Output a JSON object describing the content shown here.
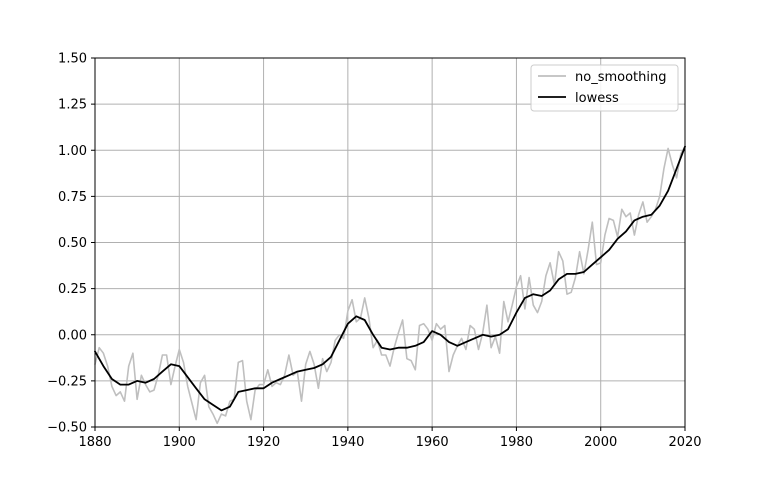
{
  "chart_data": {
    "type": "line",
    "title": "",
    "xlabel": "",
    "ylabel": "",
    "xlim": [
      1880,
      2020
    ],
    "ylim": [
      -0.5,
      1.5
    ],
    "x_ticks": [
      "1880",
      "1900",
      "1920",
      "1940",
      "1960",
      "1980",
      "2000",
      "2020"
    ],
    "y_ticks": [
      "−0.50",
      "−0.25",
      "0.00",
      "0.25",
      "0.50",
      "0.75",
      "1.00",
      "1.25",
      "1.50"
    ],
    "grid": true,
    "legend_position": "top-right",
    "series": [
      {
        "name": "no_smoothing",
        "color": "#bfbfbf",
        "x": [
          1880,
          1881,
          1882,
          1883,
          1884,
          1885,
          1886,
          1887,
          1888,
          1889,
          1890,
          1891,
          1892,
          1893,
          1894,
          1895,
          1896,
          1897,
          1898,
          1899,
          1900,
          1901,
          1902,
          1903,
          1904,
          1905,
          1906,
          1907,
          1908,
          1909,
          1910,
          1911,
          1912,
          1913,
          1914,
          1915,
          1916,
          1917,
          1918,
          1919,
          1920,
          1921,
          1922,
          1923,
          1924,
          1925,
          1926,
          1927,
          1928,
          1929,
          1930,
          1931,
          1932,
          1933,
          1934,
          1935,
          1936,
          1937,
          1938,
          1939,
          1940,
          1941,
          1942,
          1943,
          1944,
          1945,
          1946,
          1947,
          1948,
          1949,
          1950,
          1951,
          1952,
          1953,
          1954,
          1955,
          1956,
          1957,
          1958,
          1959,
          1960,
          1961,
          1962,
          1963,
          1964,
          1965,
          1966,
          1967,
          1968,
          1969,
          1970,
          1971,
          1972,
          1973,
          1974,
          1975,
          1976,
          1977,
          1978,
          1979,
          1980,
          1981,
          1982,
          1983,
          1984,
          1985,
          1986,
          1987,
          1988,
          1989,
          1990,
          1991,
          1992,
          1993,
          1994,
          1995,
          1996,
          1997,
          1998,
          1999,
          2000,
          2001,
          2002,
          2003,
          2004,
          2005,
          2006,
          2007,
          2008,
          2009,
          2010,
          2011,
          2012,
          2013,
          2014,
          2015,
          2016,
          2017,
          2018,
          2019,
          2020
        ],
        "values": [
          -0.16,
          -0.07,
          -0.1,
          -0.17,
          -0.28,
          -0.33,
          -0.31,
          -0.36,
          -0.17,
          -0.1,
          -0.35,
          -0.22,
          -0.27,
          -0.31,
          -0.3,
          -0.22,
          -0.11,
          -0.11,
          -0.27,
          -0.17,
          -0.08,
          -0.15,
          -0.28,
          -0.37,
          -0.46,
          -0.26,
          -0.22,
          -0.39,
          -0.43,
          -0.48,
          -0.43,
          -0.44,
          -0.36,
          -0.35,
          -0.15,
          -0.14,
          -0.36,
          -0.46,
          -0.3,
          -0.27,
          -0.27,
          -0.19,
          -0.28,
          -0.26,
          -0.27,
          -0.22,
          -0.11,
          -0.22,
          -0.2,
          -0.36,
          -0.16,
          -0.09,
          -0.16,
          -0.29,
          -0.13,
          -0.2,
          -0.15,
          -0.03,
          0.0,
          -0.02,
          0.13,
          0.19,
          0.07,
          0.09,
          0.2,
          0.09,
          -0.07,
          -0.03,
          -0.11,
          -0.11,
          -0.17,
          -0.07,
          0.01,
          0.08,
          -0.13,
          -0.14,
          -0.19,
          0.05,
          0.06,
          0.03,
          -0.03,
          0.06,
          0.03,
          0.05,
          -0.2,
          -0.11,
          -0.06,
          -0.02,
          -0.08,
          0.05,
          0.03,
          -0.08,
          0.01,
          0.16,
          -0.07,
          -0.01,
          -0.1,
          0.18,
          0.07,
          0.16,
          0.26,
          0.32,
          0.14,
          0.31,
          0.16,
          0.12,
          0.18,
          0.32,
          0.39,
          0.27,
          0.45,
          0.4,
          0.22,
          0.23,
          0.31,
          0.45,
          0.33,
          0.46,
          0.61,
          0.38,
          0.39,
          0.54,
          0.63,
          0.62,
          0.53,
          0.68,
          0.64,
          0.66,
          0.54,
          0.65,
          0.72,
          0.61,
          0.64,
          0.68,
          0.75,
          0.9,
          1.01,
          0.92,
          0.85,
          0.98,
          1.02
        ]
      },
      {
        "name": "lowess",
        "color": "#000000",
        "x": [
          1880,
          1882,
          1884,
          1886,
          1888,
          1890,
          1892,
          1894,
          1896,
          1898,
          1900,
          1902,
          1904,
          1906,
          1908,
          1910,
          1912,
          1914,
          1916,
          1918,
          1920,
          1922,
          1924,
          1926,
          1928,
          1930,
          1932,
          1934,
          1936,
          1938,
          1940,
          1942,
          1944,
          1946,
          1948,
          1950,
          1952,
          1954,
          1956,
          1958,
          1960,
          1962,
          1964,
          1966,
          1968,
          1970,
          1972,
          1974,
          1976,
          1978,
          1980,
          1982,
          1984,
          1986,
          1988,
          1990,
          1992,
          1994,
          1996,
          1998,
          2000,
          2002,
          2004,
          2006,
          2008,
          2010,
          2012,
          2014,
          2016,
          2018,
          2020
        ],
        "values": [
          -0.09,
          -0.17,
          -0.24,
          -0.27,
          -0.27,
          -0.25,
          -0.26,
          -0.24,
          -0.2,
          -0.16,
          -0.17,
          -0.23,
          -0.29,
          -0.35,
          -0.38,
          -0.41,
          -0.39,
          -0.31,
          -0.3,
          -0.29,
          -0.29,
          -0.26,
          -0.24,
          -0.22,
          -0.2,
          -0.19,
          -0.18,
          -0.16,
          -0.12,
          -0.03,
          0.06,
          0.1,
          0.08,
          0.0,
          -0.07,
          -0.08,
          -0.07,
          -0.07,
          -0.06,
          -0.04,
          0.02,
          0.0,
          -0.04,
          -0.06,
          -0.04,
          -0.02,
          0.0,
          -0.01,
          0.0,
          0.03,
          0.12,
          0.2,
          0.22,
          0.21,
          0.24,
          0.3,
          0.33,
          0.33,
          0.34,
          0.38,
          0.42,
          0.46,
          0.52,
          0.56,
          0.62,
          0.64,
          0.65,
          0.7,
          0.78,
          0.9,
          1.02
        ]
      }
    ]
  }
}
